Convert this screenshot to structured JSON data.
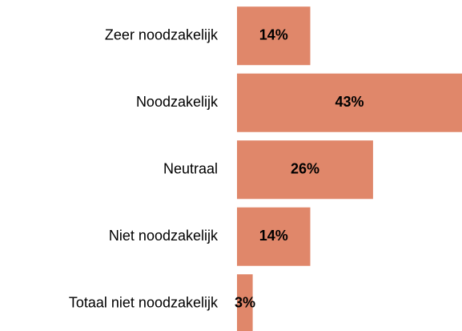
{
  "chart_data": {
    "type": "barh",
    "categories": [
      "Zeer noodzakelijk",
      "Noodzakelijk",
      "Neutraal",
      "Niet noodzakelijk",
      "Totaal niet noodzakelijk"
    ],
    "values": [
      14,
      43,
      26,
      14,
      3
    ],
    "value_labels": [
      "14%",
      "43%",
      "26%",
      "14%",
      "3%"
    ],
    "color": "#e0876a"
  }
}
